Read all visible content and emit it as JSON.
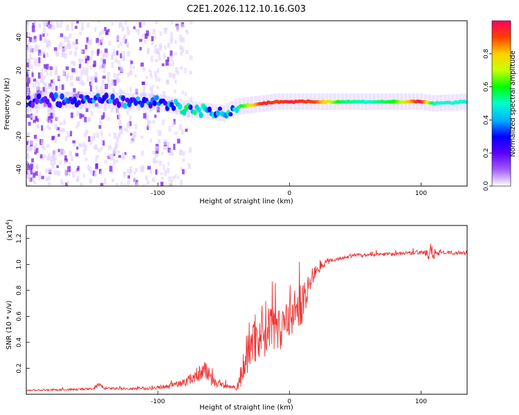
{
  "title": "C2E1.2026.112.10.16.G03",
  "colors": {
    "snr_line": "#ee3333",
    "axis": "#000000",
    "spectro_faint": "#e4d4ff",
    "spectro_mid": "#9b5cf5",
    "spectro_strong": "#7a22ee"
  },
  "colorbar": {
    "label": "Normalized spectral amplitude",
    "range": [
      0,
      1
    ],
    "ticks": [
      {
        "v": 0.0,
        "label": "0.0"
      },
      {
        "v": 0.2,
        "label": "0.2"
      },
      {
        "v": 0.4,
        "label": "0.4"
      },
      {
        "v": 0.6,
        "label": "0.6"
      },
      {
        "v": 0.8,
        "label": "0.8"
      }
    ],
    "stops": [
      "#ffffff",
      "#a05cff",
      "#5a00ff",
      "#0000ff",
      "#00b4ff",
      "#00ffcc",
      "#00ff00",
      "#c8ff00",
      "#ffd000",
      "#ff4000",
      "#ff0060"
    ]
  },
  "chart_data": [
    {
      "type": "heatmap",
      "name": "spectrogram",
      "xlabel": "Height of straight line (km)",
      "ylabel": "Frequency (Hz)",
      "xlim": [
        -200,
        135
      ],
      "ylim": [
        -50,
        50
      ],
      "xticks": [
        {
          "v": -100,
          "label": "-100"
        },
        {
          "v": 0,
          "label": "0"
        },
        {
          "v": 100,
          "label": "100"
        }
      ],
      "yticks": [
        {
          "v": -40,
          "label": "-40"
        },
        {
          "v": -20,
          "label": "-20"
        },
        {
          "v": 0,
          "label": "0"
        },
        {
          "v": 20,
          "label": "20"
        },
        {
          "v": 40,
          "label": "40"
        }
      ],
      "signal_track": {
        "x": [
          -200,
          -150,
          -100,
          -80,
          -60,
          -50,
          -40,
          -20,
          -10,
          0,
          20,
          40,
          60,
          80,
          100,
          110,
          135
        ],
        "freq": [
          2,
          2,
          1,
          -3,
          -5,
          -6,
          -2,
          0,
          1,
          1,
          1,
          1,
          1,
          1,
          1,
          0,
          1
        ],
        "amplitude": [
          0.25,
          0.3,
          0.35,
          0.42,
          0.42,
          0.35,
          0.5,
          0.95,
          0.9,
          0.95,
          0.9,
          0.55,
          0.5,
          0.6,
          0.98,
          0.5,
          0.5
        ]
      }
    },
    {
      "type": "line",
      "name": "snr",
      "xlabel": "Height of straight line (km)",
      "ylabel": "SNR (10 * v/v)",
      "scale_label": "(x10",
      "scale_exp": "4",
      "scale_close": ")",
      "xlim": [
        -200,
        135
      ],
      "ylim": [
        0,
        1.3
      ],
      "xticks": [
        {
          "v": -100,
          "label": "-100"
        },
        {
          "v": 0,
          "label": "0"
        },
        {
          "v": 100,
          "label": "100"
        }
      ],
      "yticks": [
        {
          "v": 0.2,
          "label": "0.2"
        },
        {
          "v": 0.4,
          "label": "0.4"
        },
        {
          "v": 0.6,
          "label": "0.6"
        },
        {
          "v": 0.8,
          "label": "0.8"
        },
        {
          "v": 1.0,
          "label": "1.0"
        },
        {
          "v": 1.2,
          "label": "1.2"
        }
      ],
      "series": [
        {
          "name": "SNR",
          "x": [
            -200,
            -170,
            -150,
            -145,
            -140,
            -120,
            -100,
            -90,
            -80,
            -70,
            -65,
            -60,
            -55,
            -45,
            -40,
            -35,
            -30,
            -25,
            -20,
            -10,
            -5,
            0,
            5,
            10,
            15,
            20,
            25,
            30,
            40,
            50,
            60,
            70,
            80,
            90,
            100,
            105,
            108,
            110,
            112,
            115,
            120,
            135
          ],
          "y": [
            0.03,
            0.035,
            0.04,
            0.07,
            0.045,
            0.04,
            0.05,
            0.07,
            0.09,
            0.15,
            0.2,
            0.12,
            0.08,
            0.06,
            0.05,
            0.2,
            0.4,
            0.45,
            0.5,
            0.55,
            0.55,
            0.6,
            0.65,
            0.7,
            0.85,
            0.95,
            1.0,
            1.03,
            1.05,
            1.07,
            1.07,
            1.08,
            1.08,
            1.09,
            1.09,
            1.08,
            1.12,
            1.09,
            1.08,
            1.09,
            1.09,
            1.09
          ],
          "spread": [
            0.005,
            0.008,
            0.01,
            0.02,
            0.01,
            0.01,
            0.015,
            0.02,
            0.03,
            0.06,
            0.08,
            0.05,
            0.03,
            0.02,
            0.02,
            0.15,
            0.2,
            0.22,
            0.22,
            0.2,
            0.2,
            0.18,
            0.18,
            0.15,
            0.1,
            0.06,
            0.03,
            0.02,
            0.015,
            0.015,
            0.015,
            0.015,
            0.015,
            0.015,
            0.015,
            0.03,
            0.12,
            0.05,
            0.02,
            0.015,
            0.015,
            0.015
          ]
        }
      ]
    }
  ]
}
